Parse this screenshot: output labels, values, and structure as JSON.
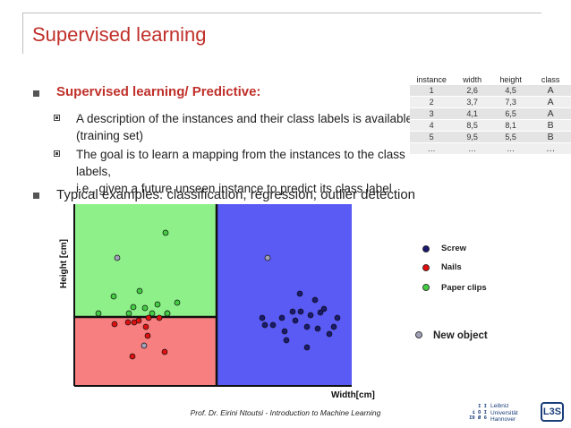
{
  "title": "Supervised learning",
  "bullets": {
    "b1": "Supervised learning/ Predictive:",
    "s1_line1": "A description of the instances and their class labels is available",
    "s1_line2": "(training set)",
    "s2_line1": "The goal is to learn a mapping from the instances to the class labels,",
    "s2_line2": "i.e., given a future unseen instance to predict its class label",
    "b2": "Typical examples: classification, regression, outlier detection"
  },
  "table": {
    "headers": [
      "instance",
      "width",
      "height",
      "class"
    ],
    "rows": [
      [
        "1",
        "2,6",
        "4,5",
        "A"
      ],
      [
        "2",
        "3,7",
        "7,3",
        "A"
      ],
      [
        "3",
        "4,1",
        "6,5",
        "A"
      ],
      [
        "4",
        "8,5",
        "8,1",
        "B"
      ],
      [
        "5",
        "9,5",
        "5,5",
        "B"
      ],
      [
        "…",
        "…",
        "…",
        "…"
      ]
    ]
  },
  "plot": {
    "ylabel": "Height [cm]",
    "xlabel": "Width[cm]",
    "colors": {
      "green_region": "#8ef089",
      "red_region": "#f87f7f",
      "blue_region": "#5a5af5",
      "screw": "#1a1a6e",
      "nails": "#e01010",
      "paper_clips": "#44cc44",
      "new_object": "#a0a0b8",
      "border": "#111111"
    },
    "legend": {
      "screw": "Screw",
      "nails": "Nails",
      "paper_clips": "Paper clips",
      "new_object": "New object"
    }
  },
  "chart_data": {
    "type": "scatter",
    "xlabel": "Width[cm]",
    "ylabel": "Height [cm]",
    "series": [
      {
        "name": "Screw",
        "color": "#1a1a6e",
        "points": [
          [
            335,
            328
          ],
          [
            327,
            348
          ],
          [
            336,
            348
          ],
          [
            347,
            352
          ],
          [
            358,
            349
          ],
          [
            352,
            335
          ],
          [
            362,
            345
          ],
          [
            293,
            355
          ],
          [
            315,
            355
          ],
          [
            296,
            363
          ],
          [
            330,
            358
          ],
          [
            343,
            365
          ],
          [
            355,
            367
          ],
          [
            377,
            355
          ],
          [
            373,
            365
          ],
          [
            368,
            373
          ],
          [
            318,
            370
          ],
          [
            320,
            380
          ],
          [
            343,
            388
          ],
          [
            305,
            363
          ]
        ]
      },
      {
        "name": "Nails",
        "color": "#e01010",
        "points": [
          [
            128,
            362
          ],
          [
            143,
            360
          ],
          [
            150,
            360
          ],
          [
            155,
            358
          ],
          [
            163,
            365
          ],
          [
            178,
            355
          ],
          [
            187,
            350
          ],
          [
            165,
            375
          ],
          [
            148,
            398
          ],
          [
            184,
            393
          ],
          [
            166,
            355
          ]
        ]
      },
      {
        "name": "Paper clips",
        "color": "#44cc44",
        "points": [
          [
            185,
            260
          ],
          [
            127,
            331
          ],
          [
            156,
            325
          ],
          [
            149,
            343
          ],
          [
            162,
            344
          ],
          [
            176,
            340
          ],
          [
            198,
            338
          ],
          [
            110,
            350
          ],
          [
            144,
            350
          ],
          [
            170,
            350
          ],
          [
            187,
            350
          ]
        ]
      },
      {
        "name": "New object",
        "color": "#a0a0b8",
        "points": [
          [
            131,
            288
          ],
          [
            299,
            288
          ],
          [
            161,
            386
          ]
        ]
      }
    ]
  },
  "footer": "Prof. Dr. Eirini Ntoutsi - Introduction to Machine Learning",
  "logo": {
    "mark": "I I\ni O I\nI0 Ø 6",
    "line1": "Leibniz",
    "line2": "Universität",
    "line3": "Hannover",
    "l3s": "L3S"
  }
}
